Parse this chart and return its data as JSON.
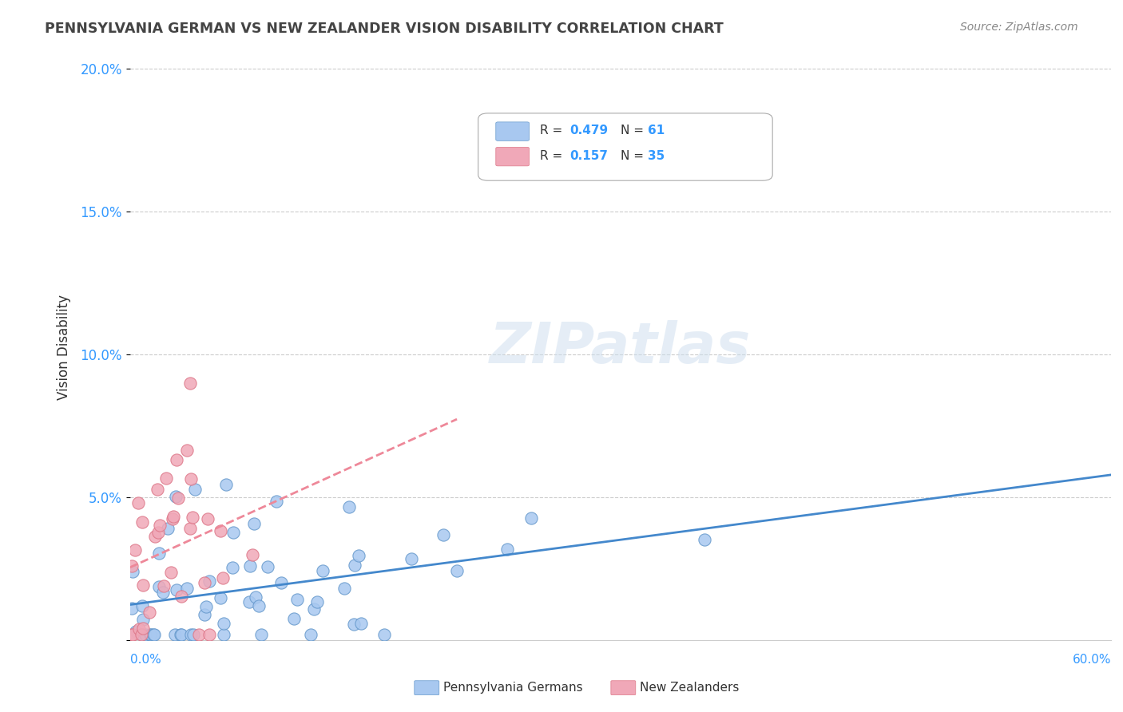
{
  "title": "PENNSYLVANIA GERMAN VS NEW ZEALANDER VISION DISABILITY CORRELATION CHART",
  "source": "Source: ZipAtlas.com",
  "ylabel": "Vision Disability",
  "r_pa": 0.479,
  "n_pa": 61,
  "r_nz": 0.157,
  "n_nz": 35,
  "xlim": [
    0.0,
    0.6
  ],
  "ylim": [
    0.0,
    0.205
  ],
  "yticks": [
    0.0,
    0.05,
    0.1,
    0.15,
    0.2
  ],
  "ytick_labels": [
    "",
    "5.0%",
    "10.0%",
    "15.0%",
    "20.0%"
  ],
  "color_pa": "#a8c8f0",
  "color_nz": "#f0a8b8",
  "color_pa_line": "#4488cc",
  "color_nz_line": "#ee8899",
  "color_pa_dark": "#6699cc",
  "color_nz_dark": "#dd7788",
  "background_color": "#ffffff",
  "grid_color": "#cccccc"
}
